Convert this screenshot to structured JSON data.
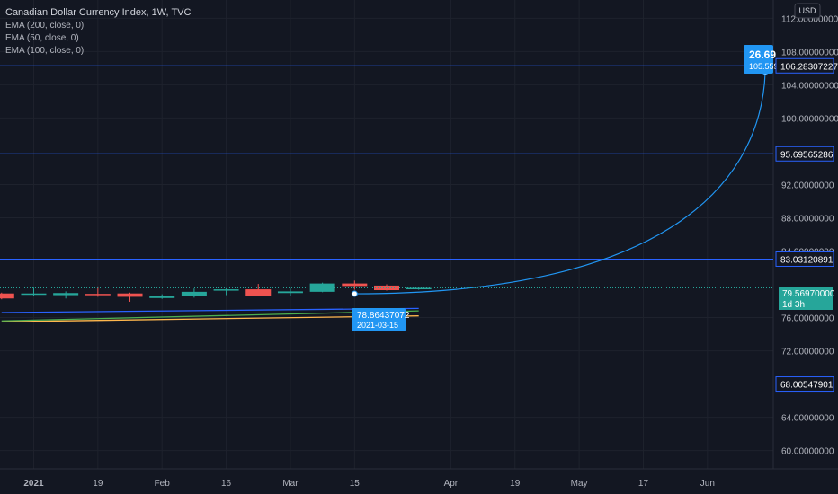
{
  "header": {
    "title": "Canadian Dollar Currency Index, 1W, TVC",
    "indicators": [
      "EMA (200, close, 0)",
      "EMA (50, close, 0)",
      "EMA (100, close, 0)"
    ]
  },
  "currency_button": "USD",
  "colors": {
    "background": "#131722",
    "up": "#26a69a",
    "down": "#ef5350",
    "hline": "#2962ff",
    "accent": "#2196f3",
    "ema200": "#ffb74d",
    "ema50": "#4caf50",
    "ema100": "#2962ff",
    "text": "#d1d4dc",
    "axis_text": "#b2b5be"
  },
  "price_axis": {
    "ticks": [
      "112.00000000",
      "108.00000000",
      "104.00000000",
      "100.00000000",
      "92.00000000",
      "88.00000000",
      "84.00000000",
      "76.00000000",
      "72.00000000",
      "64.00000000",
      "60.00000000"
    ],
    "labels": [
      {
        "text": "106.28307227",
        "value": 106.28307227
      },
      {
        "text": "95.69565286",
        "value": 95.69565286
      },
      {
        "text": "83.03120891",
        "value": 83.03120891
      },
      {
        "text": "68.00547901",
        "value": 68.00547901
      }
    ],
    "current_price": "79.56970000",
    "countdown": "1d 3h"
  },
  "time_axis": {
    "labels": [
      {
        "text": "2021",
        "t": 0,
        "bold": true
      },
      {
        "text": "19",
        "t": 2
      },
      {
        "text": "Feb",
        "t": 4
      },
      {
        "text": "16",
        "t": 6
      },
      {
        "text": "Mar",
        "t": 8
      },
      {
        "text": "15",
        "t": 10
      },
      {
        "text": "Apr",
        "t": 13
      },
      {
        "text": "19",
        "t": 15
      },
      {
        "text": "May",
        "t": 17
      },
      {
        "text": "17",
        "t": 19
      },
      {
        "text": "Jun",
        "t": 21
      }
    ]
  },
  "annotation": {
    "start_value": "78.86437072",
    "start_date": "2021-03-15",
    "end_label": "26.69",
    "end_value": "105.559"
  },
  "chart_data": {
    "type": "candlestick",
    "title": "Canadian Dollar Currency Index, 1W, TVC",
    "ylim": [
      57.8,
      114.2
    ],
    "xlim": [
      -1.05,
      23.05
    ],
    "grid": true,
    "candles": [
      {
        "t": -1,
        "open": 78.9,
        "close": 78.3,
        "high": 79.0,
        "low": 78.2
      },
      {
        "t": 0,
        "open": 78.85,
        "close": 78.9,
        "high": 79.6,
        "low": 78.55
      },
      {
        "t": 1,
        "open": 78.7,
        "close": 78.95,
        "high": 79.15,
        "low": 78.3
      },
      {
        "t": 2,
        "open": 78.85,
        "close": 78.75,
        "high": 79.75,
        "low": 78.5
      },
      {
        "t": 3,
        "open": 78.9,
        "close": 78.5,
        "high": 79.0,
        "low": 77.9
      },
      {
        "t": 4,
        "open": 78.35,
        "close": 78.55,
        "high": 78.8,
        "low": 78.25
      },
      {
        "t": 5,
        "open": 78.55,
        "close": 79.1,
        "high": 79.5,
        "low": 78.4
      },
      {
        "t": 6,
        "open": 79.3,
        "close": 79.4,
        "high": 79.55,
        "low": 78.7
      },
      {
        "t": 7,
        "open": 79.4,
        "close": 78.6,
        "high": 80.05,
        "low": 78.55
      },
      {
        "t": 8,
        "open": 78.95,
        "close": 79.15,
        "high": 79.5,
        "low": 78.6
      },
      {
        "t": 9,
        "open": 79.1,
        "close": 80.1,
        "high": 80.2,
        "low": 79.05
      },
      {
        "t": 10,
        "open": 80.1,
        "close": 79.8,
        "high": 80.45,
        "low": 79.35
      },
      {
        "t": 11,
        "open": 79.85,
        "close": 79.3,
        "high": 80.0,
        "low": 79.25
      },
      {
        "t": 12,
        "open": 79.45,
        "close": 79.57,
        "high": 79.7,
        "low": 79.35
      }
    ],
    "ema": [
      {
        "name": "EMA (200, close, 0)",
        "from": [
          -1,
          75.5
        ],
        "to": [
          12,
          76.2
        ]
      },
      {
        "name": "EMA (50, close, 0)",
        "from": [
          -1,
          75.6
        ],
        "to": [
          12,
          76.8
        ]
      },
      {
        "name": "EMA (100, close, 0)",
        "from": [
          -1,
          76.6
        ],
        "to": [
          12,
          77.1
        ]
      }
    ],
    "horizontal_lines": [
      106.28307227,
      95.69565286,
      83.03120891,
      68.00547901
    ],
    "projection": {
      "from": [
        10,
        78.86437072
      ],
      "to": [
        22.8,
        105.559
      ]
    }
  }
}
